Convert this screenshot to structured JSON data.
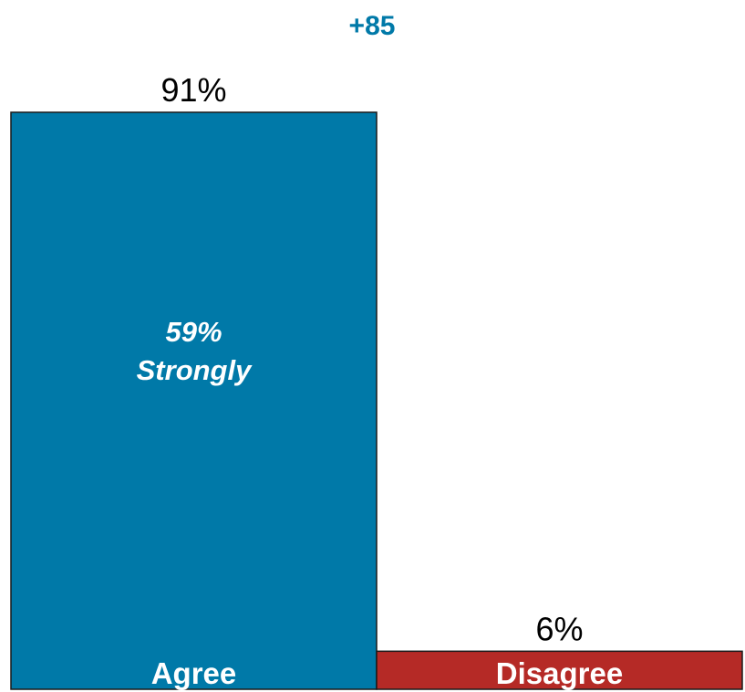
{
  "chart_data": {
    "type": "bar",
    "net_label": "+85",
    "categories": [
      "Agree",
      "Disagree"
    ],
    "values": [
      91,
      6
    ],
    "value_labels": [
      "91%",
      "6%"
    ],
    "colors": [
      "#0079A8",
      "#B52A26"
    ],
    "net_color": "#0079A8",
    "inner_label": {
      "category_index": 0,
      "lines": [
        "59%",
        "Strongly"
      ]
    },
    "title": "",
    "xlabel": "",
    "ylabel": "",
    "ylim": [
      0,
      91
    ],
    "grid": false,
    "legend": "none"
  }
}
